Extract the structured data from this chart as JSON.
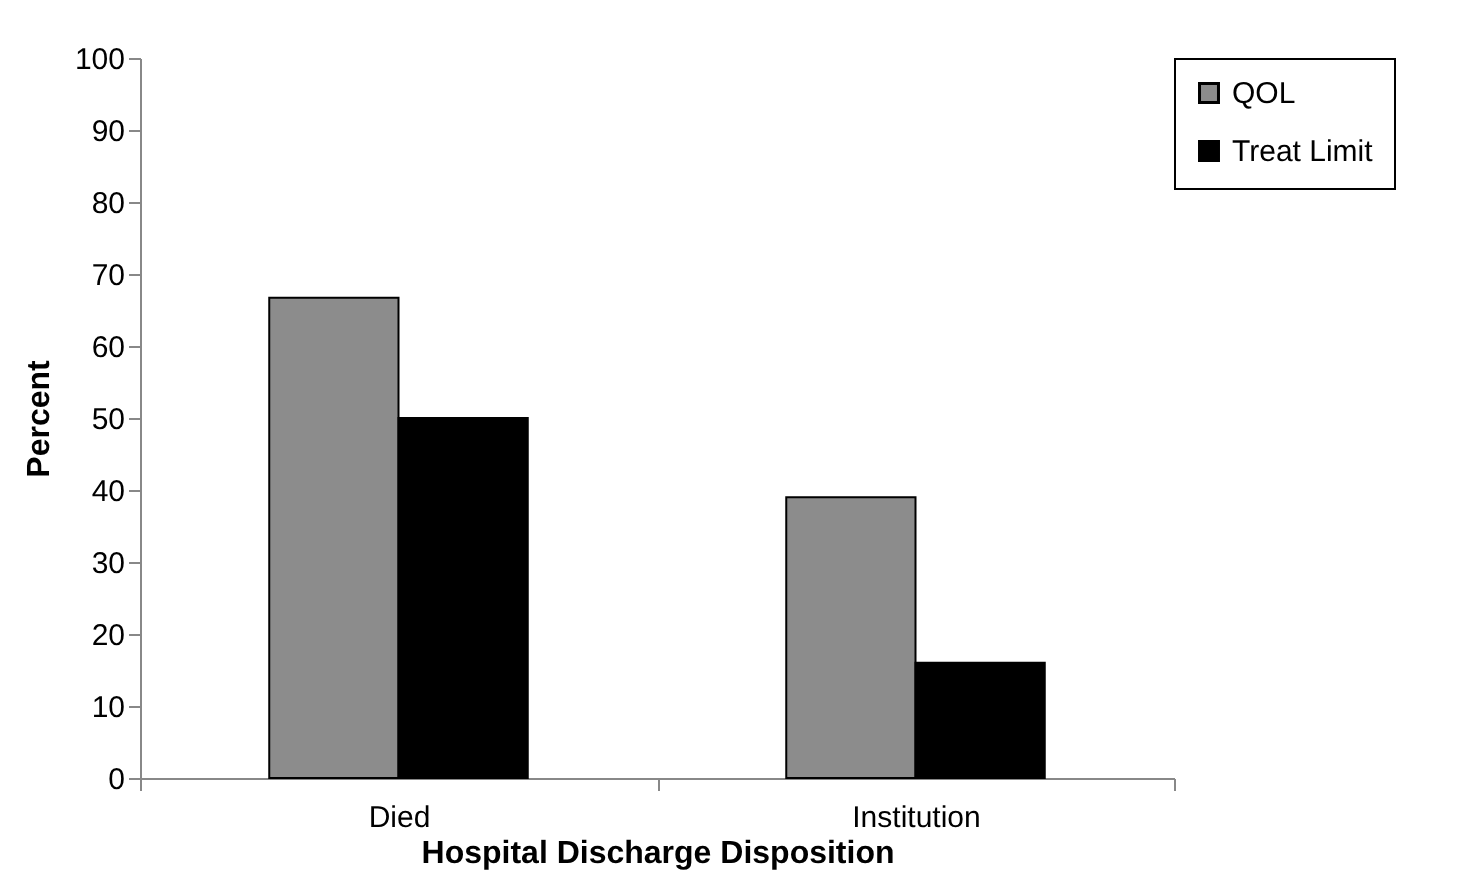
{
  "chart_data": {
    "type": "bar",
    "xlabel": "Hospital Discharge Disposition",
    "ylabel": "Percent",
    "categories": [
      "Died",
      "Institution"
    ],
    "series": [
      {
        "name": "QOL",
        "color": "#8c8c8c",
        "values": [
          66.7,
          39
        ]
      },
      {
        "name": "Treat Limit",
        "color": "#000000",
        "values": [
          50,
          16
        ]
      }
    ],
    "ylim": [
      0,
      100
    ],
    "yticks": [
      0,
      10,
      20,
      30,
      40,
      50,
      60,
      70,
      80,
      90,
      100
    ],
    "grid": false,
    "legend": "right"
  }
}
